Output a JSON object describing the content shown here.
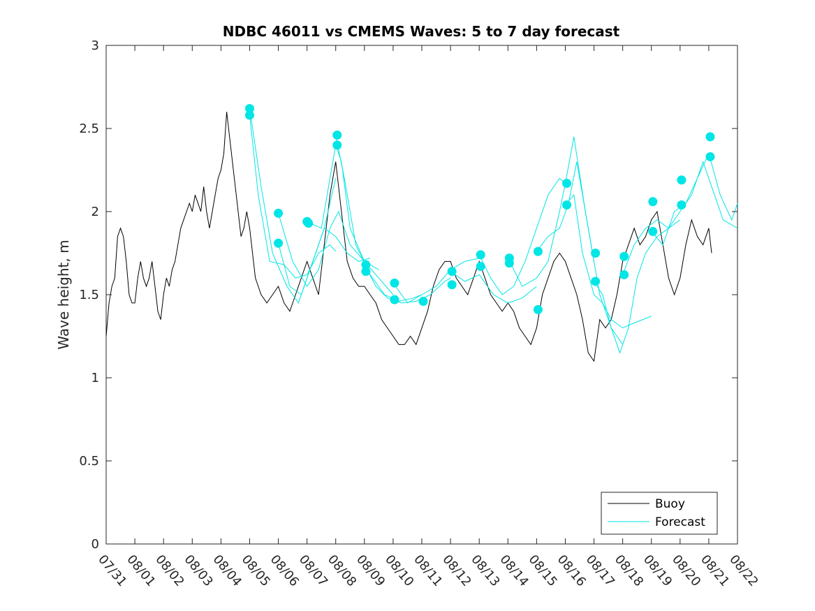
{
  "chart_data": {
    "type": "line",
    "title": "NDBC 46011 vs CMEMS Waves: 5 to 7 day forecast",
    "xlabel": "",
    "ylabel": "Wave height, m",
    "xlim": [
      0,
      22
    ],
    "ylim": [
      0,
      3
    ],
    "grid": false,
    "legend_position": "bottom-right",
    "x_tick_labels": [
      "07/31",
      "08/01",
      "08/02",
      "08/03",
      "08/04",
      "08/05",
      "08/06",
      "08/07",
      "08/08",
      "08/09",
      "08/10",
      "08/11",
      "08/12",
      "08/13",
      "08/14",
      "08/15",
      "08/16",
      "08/17",
      "08/18",
      "08/19",
      "08/20",
      "08/21",
      "08/22"
    ],
    "y_ticks": [
      0,
      0.5,
      1,
      1.5,
      2,
      2.5,
      3
    ],
    "y_tick_labels": [
      "0",
      "0.5",
      "1",
      "1.5",
      "2",
      "2.5",
      "3"
    ],
    "colors": {
      "buoy": "#000000",
      "forecast": "#00e5e5",
      "markers": "#00e5e5"
    },
    "series": [
      {
        "name": "Buoy",
        "x": [
          0.0,
          0.1,
          0.2,
          0.3,
          0.4,
          0.5,
          0.6,
          0.7,
          0.8,
          0.9,
          1.0,
          1.1,
          1.2,
          1.3,
          1.4,
          1.5,
          1.6,
          1.7,
          1.8,
          1.9,
          2.0,
          2.1,
          2.2,
          2.3,
          2.4,
          2.5,
          2.6,
          2.7,
          2.8,
          2.9,
          3.0,
          3.1,
          3.2,
          3.3,
          3.4,
          3.5,
          3.6,
          3.7,
          3.8,
          3.9,
          4.0,
          4.1,
          4.2,
          4.3,
          4.4,
          4.5,
          4.6,
          4.7,
          4.8,
          4.9,
          5.0,
          5.2,
          5.4,
          5.6,
          5.8,
          6.0,
          6.2,
          6.4,
          6.6,
          6.8,
          7.0,
          7.2,
          7.4,
          7.6,
          7.8,
          8.0,
          8.2,
          8.4,
          8.6,
          8.8,
          9.0,
          9.2,
          9.4,
          9.6,
          9.8,
          10.0,
          10.2,
          10.4,
          10.6,
          10.8,
          11.0,
          11.2,
          11.4,
          11.6,
          11.8,
          12.0,
          12.2,
          12.4,
          12.6,
          12.8,
          13.0,
          13.2,
          13.4,
          13.6,
          13.8,
          14.0,
          14.2,
          14.4,
          14.6,
          14.8,
          15.0,
          15.2,
          15.4,
          15.6,
          15.8,
          16.0,
          16.2,
          16.4,
          16.6,
          16.8,
          17.0,
          17.2,
          17.4,
          17.6,
          17.8,
          18.0,
          18.2,
          18.4,
          18.6,
          18.8,
          19.0,
          19.2,
          19.4,
          19.6,
          19.8,
          20.0,
          20.2,
          20.4,
          20.6,
          20.8,
          21.0,
          21.1
        ],
        "values": [
          1.25,
          1.45,
          1.55,
          1.6,
          1.85,
          1.9,
          1.85,
          1.7,
          1.5,
          1.45,
          1.45,
          1.6,
          1.7,
          1.6,
          1.55,
          1.6,
          1.7,
          1.55,
          1.4,
          1.35,
          1.5,
          1.6,
          1.55,
          1.65,
          1.7,
          1.8,
          1.9,
          1.95,
          2.0,
          2.05,
          2.0,
          2.1,
          2.05,
          2.0,
          2.15,
          2.0,
          1.9,
          2.0,
          2.1,
          2.2,
          2.25,
          2.35,
          2.6,
          2.45,
          2.3,
          2.15,
          2.0,
          1.85,
          1.9,
          2.0,
          1.9,
          1.6,
          1.5,
          1.45,
          1.5,
          1.55,
          1.45,
          1.4,
          1.5,
          1.6,
          1.7,
          1.6,
          1.5,
          1.8,
          2.1,
          2.3,
          2.0,
          1.7,
          1.6,
          1.55,
          1.55,
          1.5,
          1.45,
          1.35,
          1.3,
          1.25,
          1.2,
          1.2,
          1.25,
          1.2,
          1.3,
          1.4,
          1.55,
          1.65,
          1.7,
          1.7,
          1.6,
          1.55,
          1.5,
          1.6,
          1.7,
          1.6,
          1.5,
          1.45,
          1.4,
          1.45,
          1.4,
          1.3,
          1.25,
          1.2,
          1.3,
          1.5,
          1.6,
          1.7,
          1.75,
          1.7,
          1.6,
          1.5,
          1.35,
          1.15,
          1.1,
          1.35,
          1.3,
          1.35,
          1.5,
          1.7,
          1.8,
          1.9,
          1.8,
          1.85,
          1.95,
          2.0,
          1.8,
          1.6,
          1.5,
          1.6,
          1.8,
          1.95,
          1.85,
          1.8,
          1.9,
          1.75
        ]
      },
      {
        "name": "Forecast",
        "segments": [
          {
            "x": [
              5.0,
              5.3,
              5.7,
              6.2,
              6.6,
              7.0,
              7.4,
              7.8,
              8.0
            ],
            "values": [
              2.58,
              2.1,
              1.7,
              1.68,
              1.6,
              1.62,
              1.75,
              1.8,
              1.76
            ]
          },
          {
            "x": [
              5.0,
              5.4,
              5.8,
              6.3,
              6.7,
              7.1,
              7.6,
              8.0
            ],
            "values": [
              2.62,
              2.15,
              1.75,
              1.55,
              1.45,
              1.65,
              1.9,
              2.2
            ]
          },
          {
            "x": [
              6.0,
              6.5,
              7.0,
              7.4,
              7.8,
              8.1,
              8.5,
              9.0,
              9.5
            ],
            "values": [
              1.99,
              1.7,
              1.55,
              1.65,
              1.9,
              2.0,
              1.8,
              1.7,
              1.65
            ]
          },
          {
            "x": [
              6.0,
              6.4,
              6.8,
              7.2,
              7.6,
              8.0,
              8.4,
              8.8,
              9.2
            ],
            "values": [
              1.81,
              1.55,
              1.5,
              1.7,
              1.9,
              1.85,
              1.75,
              1.7,
              1.72
            ]
          },
          {
            "x": [
              7.0,
              7.5,
              8.0,
              8.2,
              8.5,
              9.0,
              9.5,
              10.0
            ],
            "values": [
              1.94,
              1.9,
              2.4,
              2.3,
              1.9,
              1.7,
              1.6,
              1.5
            ]
          },
          {
            "x": [
              8.0,
              8.3,
              8.7,
              9.2,
              9.7,
              10.2,
              10.7,
              11.0
            ],
            "values": [
              2.46,
              2.2,
              1.8,
              1.62,
              1.5,
              1.46,
              1.48,
              1.5
            ]
          },
          {
            "x": [
              9.0,
              9.4,
              9.8,
              10.3,
              10.8,
              11.3,
              11.8,
              12.0
            ],
            "values": [
              1.68,
              1.55,
              1.48,
              1.45,
              1.46,
              1.5,
              1.58,
              1.6
            ]
          },
          {
            "x": [
              10.0,
              10.5,
              11.0,
              11.5,
              12.0,
              12.5,
              13.0
            ],
            "values": [
              1.57,
              1.45,
              1.5,
              1.55,
              1.65,
              1.7,
              1.72
            ]
          },
          {
            "x": [
              12.0,
              12.5,
              13.0,
              13.5,
              14.0,
              14.5,
              15.0
            ],
            "values": [
              1.64,
              1.58,
              1.62,
              1.5,
              1.45,
              1.48,
              1.55
            ]
          },
          {
            "x": [
              13.0,
              13.4,
              13.8,
              14.2,
              14.6,
              15.0,
              15.4,
              15.8,
              16.0
            ],
            "values": [
              1.74,
              1.6,
              1.5,
              1.55,
              1.7,
              1.9,
              2.1,
              2.2,
              2.17
            ]
          },
          {
            "x": [
              14.0,
              14.5,
              15.0,
              15.4,
              15.8,
              16.0,
              16.3,
              16.7,
              17.0
            ],
            "values": [
              1.72,
              1.55,
              1.6,
              1.7,
              2.0,
              2.17,
              2.45,
              2.0,
              1.7
            ]
          },
          {
            "x": [
              15.0,
              15.4,
              15.8,
              16.1,
              16.4,
              16.8,
              17.2,
              17.6,
              18.0
            ],
            "values": [
              1.76,
              1.85,
              1.9,
              2.04,
              2.3,
              1.9,
              1.5,
              1.3,
              1.2
            ]
          },
          {
            "x": [
              16.0,
              16.3,
              16.6,
              17.0,
              17.3,
              17.6,
              18.0,
              18.4,
              19.0
            ],
            "values": [
              2.04,
              2.1,
              1.75,
              1.5,
              1.45,
              1.35,
              1.3,
              1.33,
              1.37
            ]
          },
          {
            "x": [
              17.0,
              17.3,
              17.6,
              17.9,
              18.2,
              18.5,
              18.8,
              19.2,
              19.6,
              20.0
            ],
            "values": [
              1.58,
              1.5,
              1.3,
              1.15,
              1.3,
              1.6,
              1.75,
              1.85,
              1.9,
              1.95
            ]
          },
          {
            "x": [
              18.0,
              18.4,
              18.8,
              19.2,
              19.6,
              20.0,
              20.4,
              20.8,
              21.0,
              21.5,
              22.0
            ],
            "values": [
              1.62,
              1.8,
              1.9,
              1.95,
              1.9,
              2.0,
              2.1,
              2.3,
              2.2,
              1.95,
              1.9
            ]
          },
          {
            "x": [
              19.0,
              19.4,
              19.8,
              20.2,
              20.6,
              21.0,
              21.4,
              21.8,
              22.0
            ],
            "values": [
              1.88,
              1.8,
              2.0,
              2.05,
              2.2,
              2.35,
              2.1,
              1.95,
              2.05
            ]
          }
        ]
      }
    ],
    "markers": [
      {
        "x": 5.0,
        "y": 2.62
      },
      {
        "x": 5.0,
        "y": 2.58
      },
      {
        "x": 6.0,
        "y": 1.99
      },
      {
        "x": 6.0,
        "y": 1.81
      },
      {
        "x": 7.0,
        "y": 1.94
      },
      {
        "x": 7.05,
        "y": 1.93
      },
      {
        "x": 8.05,
        "y": 2.46
      },
      {
        "x": 8.05,
        "y": 2.4
      },
      {
        "x": 9.05,
        "y": 1.68
      },
      {
        "x": 9.05,
        "y": 1.64
      },
      {
        "x": 10.05,
        "y": 1.57
      },
      {
        "x": 10.05,
        "y": 1.47
      },
      {
        "x": 11.05,
        "y": 1.46
      },
      {
        "x": 12.05,
        "y": 1.64
      },
      {
        "x": 12.05,
        "y": 1.56
      },
      {
        "x": 13.05,
        "y": 1.74
      },
      {
        "x": 13.05,
        "y": 1.67
      },
      {
        "x": 14.05,
        "y": 1.72
      },
      {
        "x": 14.05,
        "y": 1.69
      },
      {
        "x": 15.05,
        "y": 1.76
      },
      {
        "x": 15.05,
        "y": 1.41
      },
      {
        "x": 16.05,
        "y": 2.17
      },
      {
        "x": 16.05,
        "y": 2.04
      },
      {
        "x": 17.05,
        "y": 1.75
      },
      {
        "x": 17.05,
        "y": 1.58
      },
      {
        "x": 18.05,
        "y": 1.73
      },
      {
        "x": 18.05,
        "y": 1.62
      },
      {
        "x": 19.05,
        "y": 2.06
      },
      {
        "x": 19.05,
        "y": 1.88
      },
      {
        "x": 20.05,
        "y": 2.19
      },
      {
        "x": 20.05,
        "y": 2.04
      },
      {
        "x": 21.05,
        "y": 2.45
      },
      {
        "x": 21.05,
        "y": 2.33
      }
    ],
    "legend": [
      {
        "label": "Buoy",
        "color": "#000000"
      },
      {
        "label": "Forecast",
        "color": "#00e5e5"
      }
    ]
  }
}
